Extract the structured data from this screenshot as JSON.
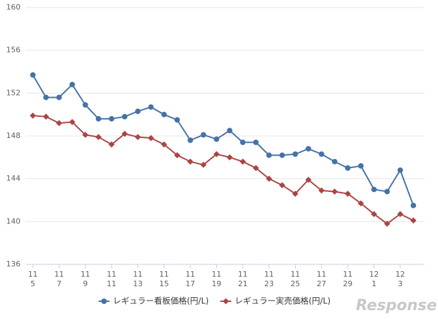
{
  "chart_data": {
    "type": "line",
    "categories": [
      [
        "11",
        "5"
      ],
      null,
      [
        "11",
        "7"
      ],
      null,
      [
        "11",
        "9"
      ],
      null,
      [
        "11",
        "11"
      ],
      null,
      [
        "11",
        "13"
      ],
      null,
      [
        "11",
        "15"
      ],
      null,
      [
        "11",
        "17"
      ],
      null,
      [
        "11",
        "19"
      ],
      null,
      [
        "11",
        "21"
      ],
      null,
      [
        "11",
        "23"
      ],
      null,
      [
        "11",
        "25"
      ],
      null,
      [
        "11",
        "27"
      ],
      null,
      [
        "11",
        "29"
      ],
      null,
      [
        "12",
        "1"
      ],
      null,
      [
        "12",
        "3"
      ],
      null
    ],
    "series": [
      {
        "name": "レギュラー看板価格(円/L)",
        "color": "#4572a7",
        "marker": "circle",
        "values": [
          153.7,
          151.6,
          151.6,
          152.8,
          150.9,
          149.6,
          149.6,
          149.8,
          150.3,
          150.7,
          150.0,
          149.5,
          147.6,
          148.1,
          147.7,
          148.5,
          147.4,
          147.4,
          146.2,
          146.2,
          146.3,
          146.8,
          146.3,
          145.6,
          145.0,
          145.2,
          143.0,
          142.8,
          144.8,
          141.5
        ]
      },
      {
        "name": "レギュラー実売価格(円/L)",
        "color": "#aa4643",
        "marker": "diamond",
        "values": [
          149.9,
          149.8,
          149.2,
          149.3,
          148.1,
          147.9,
          147.2,
          148.2,
          147.9,
          147.8,
          147.2,
          146.2,
          145.6,
          145.3,
          146.3,
          146.0,
          145.6,
          145.0,
          144.0,
          143.4,
          142.6,
          143.9,
          142.9,
          142.8,
          142.6,
          141.7,
          140.7,
          139.8,
          140.7,
          140.1
        ]
      }
    ],
    "ylim": [
      136,
      160
    ],
    "yticks": [
      136,
      140,
      144,
      148,
      152,
      156,
      160
    ],
    "grid": true,
    "logo": "Response"
  }
}
